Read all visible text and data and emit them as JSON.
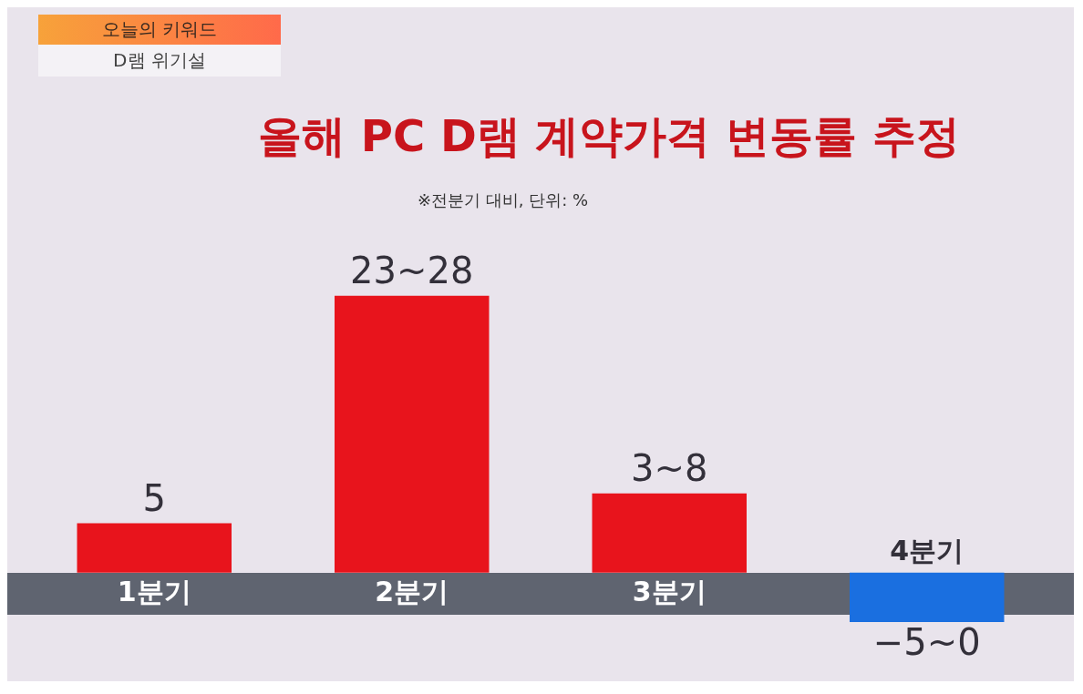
{
  "chart_data": {
    "type": "bar",
    "title": "올해 PC D램 계약가격 변동률 추정",
    "subtitle": "※전분기 대비, 단위: %",
    "annotations": [
      "오늘의 키워드",
      "D램 위기설"
    ],
    "categories": [
      "1분기",
      "2분기",
      "3분기",
      "4분기"
    ],
    "values": [
      5,
      28,
      8,
      -5
    ],
    "value_labels": [
      "5",
      "23~28",
      "3~8",
      "−5~0"
    ],
    "colors": [
      "#e8141c",
      "#e8141c",
      "#e8141c",
      "#1a6fe0"
    ]
  }
}
